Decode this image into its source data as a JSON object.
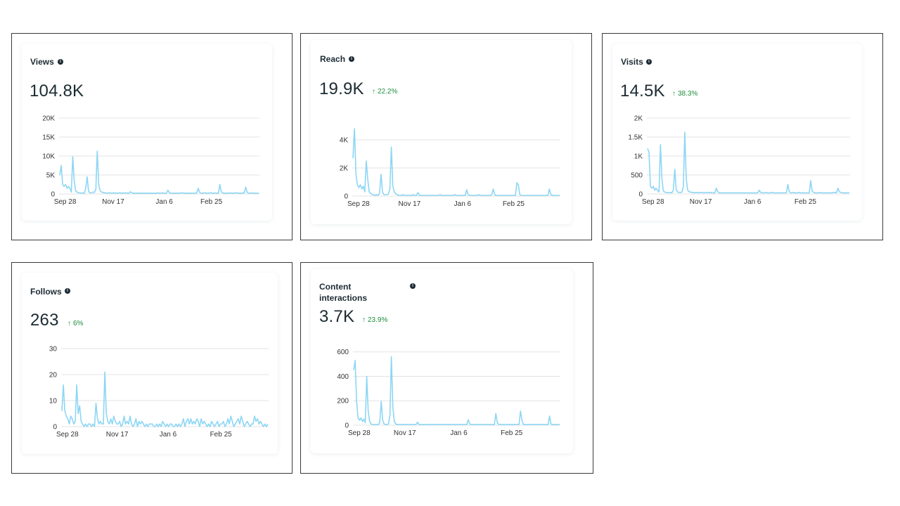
{
  "colors": {
    "line": "#8dd6f4",
    "grid": "#e3e3e3",
    "delta_up": "#1e8e3e"
  },
  "icons": {
    "info": "info-icon",
    "delta": "arrow-up-icon"
  },
  "cards": [
    {
      "id": "views",
      "title": "Views",
      "value": "104.8K",
      "delta": ""
    },
    {
      "id": "reach",
      "title": "Reach",
      "value": "19.9K",
      "delta": "22.2%"
    },
    {
      "id": "visits",
      "title": "Visits",
      "value": "14.5K",
      "delta": "38.3%"
    },
    {
      "id": "follows",
      "title": "Follows",
      "value": "263",
      "delta": "6%"
    },
    {
      "id": "content",
      "title": "Content\ninteractions",
      "value": "3.7K",
      "delta": "23.9%"
    }
  ],
  "chart_data": [
    {
      "id": "views",
      "type": "line",
      "title": "Views",
      "x_tick_labels": [
        "Sep 28",
        "Nov 17",
        "Jan 6",
        "Feb 25"
      ],
      "y_ticks": [
        0,
        5000,
        10000,
        15000,
        20000
      ],
      "y_tick_labels": [
        "0",
        "5K",
        "10K",
        "15K",
        "20K"
      ],
      "ylim": [
        0,
        20000
      ],
      "grid": true,
      "series": [
        {
          "values": [
            5000,
            7500,
            2500,
            2000,
            2500,
            1500,
            2000,
            1500,
            500,
            9800,
            3500,
            800,
            500,
            300,
            300,
            200,
            300,
            200,
            1500,
            4500,
            600,
            300,
            300,
            500,
            400,
            1200,
            11300,
            2500,
            800,
            500,
            400,
            300,
            300,
            200,
            300,
            300,
            200,
            300,
            300,
            200,
            200,
            300,
            300,
            200,
            300,
            200,
            300,
            200,
            200,
            600,
            300,
            200,
            200,
            200,
            200,
            200,
            200,
            200,
            200,
            200,
            200,
            200,
            200,
            200,
            200,
            200,
            200,
            200,
            300,
            200,
            200,
            300,
            200,
            200,
            200,
            1000,
            300,
            200,
            200,
            200,
            200,
            200,
            200,
            200,
            300,
            300,
            200,
            200,
            200,
            200,
            200,
            200,
            200,
            200,
            200,
            300,
            1500,
            400,
            200,
            200,
            300,
            300,
            200,
            200,
            300,
            300,
            200,
            200,
            300,
            200,
            200,
            2500,
            600,
            300,
            200,
            200,
            200,
            200,
            300,
            200,
            200,
            200,
            300,
            300,
            200,
            200,
            200,
            300,
            300,
            1800,
            400,
            200,
            200,
            300,
            200,
            200,
            200,
            200,
            200
          ]
        }
      ]
    },
    {
      "id": "reach",
      "type": "line",
      "title": "Reach",
      "x_tick_labels": [
        "Sep 28",
        "Nov 17",
        "Jan 6",
        "Feb 25"
      ],
      "y_ticks": [
        0,
        2000,
        4000
      ],
      "y_tick_labels": [
        "0",
        "2K",
        "4K"
      ],
      "ylim": [
        0,
        4500
      ],
      "grid": true,
      "series": [
        {
          "values": [
            2700,
            4800,
            1600,
            800,
            600,
            800,
            500,
            700,
            300,
            2500,
            1200,
            300,
            200,
            100,
            100,
            50,
            100,
            50,
            200,
            1550,
            300,
            100,
            100,
            100,
            150,
            500,
            3500,
            700,
            300,
            150,
            100,
            50,
            50,
            50,
            100,
            50,
            50,
            50,
            50,
            50,
            50,
            100,
            50,
            50,
            250,
            50,
            50,
            50,
            50,
            50,
            50,
            50,
            50,
            50,
            50,
            50,
            50,
            50,
            50,
            100,
            50,
            50,
            50,
            50,
            50,
            50,
            50,
            50,
            50,
            100,
            50,
            50,
            50,
            50,
            50,
            50,
            50,
            450,
            100,
            50,
            50,
            50,
            50,
            50,
            50,
            100,
            50,
            50,
            50,
            50,
            50,
            50,
            50,
            50,
            100,
            500,
            100,
            50,
            50,
            50,
            50,
            50,
            50,
            50,
            50,
            50,
            50,
            50,
            50,
            50,
            50,
            950,
            800,
            100,
            50,
            50,
            50,
            50,
            50,
            50,
            50,
            50,
            50,
            50,
            50,
            50,
            50,
            50,
            50,
            50,
            50,
            50,
            50,
            500,
            100,
            50,
            50,
            50,
            50,
            50,
            50
          ]
        }
      ]
    },
    {
      "id": "visits",
      "type": "line",
      "title": "Visits",
      "x_tick_labels": [
        "Sep 28",
        "Nov 17",
        "Jan 6",
        "Feb 25"
      ],
      "y_ticks": [
        0,
        500,
        1000,
        1500,
        2000
      ],
      "y_tick_labels": [
        "0",
        "500",
        "1K",
        "1.5K",
        "2K"
      ],
      "ylim": [
        0,
        2000
      ],
      "grid": true,
      "series": [
        {
          "values": [
            1200,
            1100,
            200,
            150,
            200,
            100,
            150,
            100,
            50,
            1300,
            400,
            80,
            50,
            40,
            40,
            30,
            40,
            30,
            100,
            650,
            120,
            50,
            40,
            40,
            50,
            200,
            1630,
            400,
            100,
            60,
            50,
            40,
            40,
            30,
            40,
            40,
            30,
            40,
            40,
            30,
            30,
            40,
            40,
            30,
            40,
            30,
            30,
            30,
            150,
            60,
            30,
            30,
            30,
            30,
            30,
            30,
            30,
            30,
            30,
            30,
            30,
            30,
            30,
            30,
            30,
            30,
            30,
            30,
            30,
            30,
            30,
            30,
            30,
            30,
            30,
            30,
            30,
            30,
            100,
            40,
            30,
            30,
            30,
            40,
            30,
            30,
            30,
            40,
            30,
            30,
            30,
            30,
            30,
            30,
            30,
            30,
            30,
            30,
            250,
            60,
            30,
            30,
            40,
            30,
            30,
            30,
            40,
            30,
            30,
            30,
            30,
            30,
            30,
            30,
            350,
            80,
            40,
            30,
            30,
            30,
            30,
            40,
            30,
            30,
            30,
            30,
            30,
            30,
            30,
            30,
            40,
            40,
            30,
            150,
            60,
            40,
            30,
            30,
            30,
            30,
            30,
            30
          ]
        }
      ]
    },
    {
      "id": "follows",
      "type": "line",
      "title": "Follows",
      "x_tick_labels": [
        "Sep 28",
        "Nov 17",
        "Jan 6",
        "Feb 25"
      ],
      "y_ticks": [
        0,
        10,
        20,
        30
      ],
      "y_tick_labels": [
        "0",
        "10",
        "20",
        "30"
      ],
      "ylim": [
        0,
        30
      ],
      "grid": true,
      "series": [
        {
          "values": [
            6,
            16,
            6,
            4,
            3,
            1,
            4,
            3,
            1,
            2,
            16,
            5,
            8,
            2,
            1,
            0,
            1,
            0,
            1,
            1,
            0,
            1,
            0,
            9,
            3,
            1,
            2,
            1,
            1,
            21,
            5,
            2,
            1,
            3,
            1,
            4,
            2,
            1,
            1,
            2,
            0,
            1,
            4,
            1,
            2,
            1,
            4,
            1,
            0,
            1,
            3,
            0,
            2,
            1,
            2,
            1,
            0,
            1,
            0,
            1,
            1,
            1,
            0,
            0,
            1,
            0,
            1,
            0,
            2,
            1,
            0,
            1,
            0,
            1,
            1,
            0,
            0,
            1,
            0,
            1,
            0,
            1,
            3,
            0,
            2,
            3,
            1,
            3,
            1,
            2,
            1,
            3,
            2,
            0,
            3,
            1,
            2,
            1,
            0,
            1,
            0,
            2,
            1,
            0,
            1,
            2,
            0,
            1,
            1,
            2,
            0,
            1,
            3,
            1,
            4,
            2,
            0,
            1,
            2,
            3,
            1,
            4,
            2,
            0,
            1,
            2,
            1,
            0,
            1,
            1,
            4,
            2,
            3,
            1,
            2,
            1,
            0,
            1,
            0,
            1
          ]
        }
      ]
    },
    {
      "id": "content",
      "type": "line",
      "title": "Content interactions",
      "x_tick_labels": [
        "Sep 28",
        "Nov 17",
        "Jan 6",
        "Feb 25"
      ],
      "y_ticks": [
        0,
        200,
        400,
        600
      ],
      "y_tick_labels": [
        "0",
        "200",
        "400",
        "600"
      ],
      "ylim": [
        0,
        650
      ],
      "grid": true,
      "series": [
        {
          "values": [
            450,
            530,
            200,
            60,
            40,
            60,
            30,
            50,
            20,
            400,
            120,
            30,
            10,
            5,
            5,
            5,
            5,
            5,
            20,
            195,
            40,
            10,
            5,
            5,
            10,
            80,
            560,
            150,
            30,
            10,
            5,
            5,
            5,
            5,
            5,
            5,
            5,
            5,
            5,
            5,
            5,
            5,
            5,
            5,
            25,
            5,
            5,
            5,
            5,
            5,
            5,
            5,
            5,
            5,
            5,
            5,
            5,
            5,
            5,
            5,
            5,
            5,
            5,
            5,
            5,
            5,
            5,
            5,
            5,
            5,
            5,
            5,
            5,
            5,
            5,
            5,
            5,
            5,
            5,
            45,
            10,
            5,
            5,
            5,
            5,
            5,
            5,
            5,
            5,
            5,
            5,
            5,
            5,
            5,
            5,
            5,
            5,
            5,
            95,
            20,
            5,
            5,
            5,
            5,
            5,
            5,
            5,
            5,
            5,
            5,
            5,
            5,
            5,
            5,
            5,
            115,
            40,
            5,
            5,
            5,
            5,
            5,
            5,
            5,
            5,
            5,
            5,
            5,
            5,
            5,
            5,
            5,
            5,
            5,
            5,
            75,
            10,
            5,
            5,
            5,
            5,
            5,
            5
          ]
        }
      ]
    }
  ]
}
